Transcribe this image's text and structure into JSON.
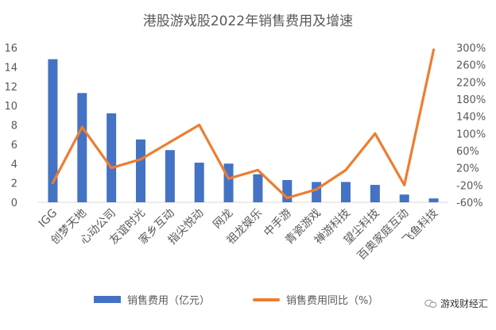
{
  "chart_data": {
    "type": "bar+line",
    "title": "港股游戏股2022年销售费用及增速",
    "categories": [
      "IGG",
      "创梦天地",
      "心动公司",
      "友谊时光",
      "家乡互动",
      "指尖悦动",
      "网龙",
      "祖龙娱乐",
      "中手游",
      "青瓷游戏",
      "禅游科技",
      "望尘科技",
      "百奥家庭互动",
      "飞鱼科技"
    ],
    "series": [
      {
        "name": "销售费用（亿元）",
        "type": "bar",
        "axis": "left",
        "color": "#4472C4",
        "values": [
          14.8,
          11.3,
          9.2,
          6.5,
          5.4,
          4.1,
          4.0,
          2.9,
          2.3,
          2.1,
          2.1,
          1.8,
          0.8,
          0.4
        ]
      },
      {
        "name": "销售费用同比（%）",
        "type": "line",
        "axis": "right",
        "color": "#ED7D31",
        "values": [
          -15,
          115,
          20,
          40,
          80,
          120,
          -5,
          15,
          -50,
          -30,
          15,
          100,
          -20,
          295
        ]
      }
    ],
    "left_axis": {
      "ylim": [
        0,
        16
      ],
      "ticks": [
        "0",
        "2",
        "4",
        "6",
        "8",
        "10",
        "12",
        "14",
        "16"
      ]
    },
    "right_axis": {
      "ylim": [
        -60,
        300
      ],
      "ticks": [
        "-60%",
        "-20%",
        "20%",
        "60%",
        "100%",
        "140%",
        "180%",
        "220%",
        "260%",
        "300%"
      ]
    },
    "grid": false,
    "legend": "bottom"
  },
  "watermark": {
    "text": "游戏财经汇"
  }
}
